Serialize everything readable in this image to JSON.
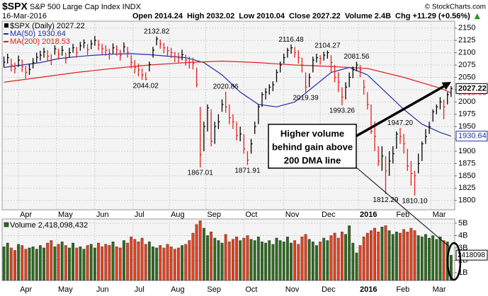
{
  "chart_data": {
    "type": "stock",
    "title": "$SPX",
    "subtitle": "S&P 500 Large Cap Index INDX",
    "credit": "© StockCharts.com",
    "date": "16-Mar-2016",
    "quote": [
      "Open 2014.24",
      "High 2032.02",
      "Low 2010.04",
      "Close 2027.22",
      "Volume 2.4B",
      "Chg +11.29 (+0.56%)"
    ],
    "grid": true,
    "xlim": [
      -1,
      248
    ],
    "xticks": [
      {
        "value": 8,
        "label": "Apr"
      },
      {
        "value": 29,
        "label": "May"
      },
      {
        "value": 50,
        "label": "Jun"
      },
      {
        "value": 71,
        "label": "Jul"
      },
      {
        "value": 91,
        "label": "Aug"
      },
      {
        "value": 111,
        "label": "Sep"
      },
      {
        "value": 132,
        "label": "Oct"
      },
      {
        "value": 154,
        "label": "Nov"
      },
      {
        "value": 174,
        "label": "Dec"
      },
      {
        "value": 195,
        "label": "2016"
      },
      {
        "value": 215,
        "label": "Feb"
      },
      {
        "value": 235,
        "label": "Mar"
      }
    ],
    "ylim": [
      1781,
      2164
    ],
    "yticks": [
      1800,
      1825,
      1850,
      1875,
      1900,
      1925,
      1950,
      1975,
      2000,
      2025,
      2050,
      2075,
      2100,
      2125,
      2150
    ],
    "price": {
      "name": "$SPX (Daily) 2027.22",
      "up_color": "#000000",
      "down_color": "#e8201c",
      "x": [
        0,
        2,
        4,
        6,
        8,
        10,
        12,
        14,
        16,
        18,
        20,
        22,
        24,
        26,
        28,
        30,
        32,
        34,
        36,
        38,
        40,
        42,
        44,
        46,
        48,
        50,
        52,
        54,
        56,
        58,
        60,
        62,
        64,
        66,
        68,
        70,
        72,
        74,
        76,
        78,
        80,
        82,
        84,
        86,
        88,
        90,
        92,
        94,
        96,
        98,
        100,
        102,
        104,
        106,
        108,
        110,
        112,
        114,
        116,
        118,
        120,
        122,
        124,
        126,
        128,
        130,
        132,
        134,
        136,
        138,
        140,
        142,
        144,
        146,
        148,
        150,
        152,
        154,
        156,
        158,
        160,
        162,
        164,
        166,
        168,
        170,
        172,
        174,
        176,
        178,
        180,
        182,
        184,
        186,
        188,
        190,
        192,
        194,
        196,
        198,
        200,
        202,
        204,
        206,
        208,
        210,
        212,
        214,
        216,
        218,
        220,
        222,
        224,
        226,
        228,
        230,
        232,
        234,
        236,
        238,
        240,
        242,
        244,
        246
      ],
      "high": [
        2092,
        2098,
        2088,
        2080,
        2094,
        2086,
        2073,
        2078,
        2089,
        2100,
        2104,
        2110,
        2105,
        2097,
        2115,
        2108,
        2114,
        2100,
        2110,
        2118,
        2112,
        2122,
        2127,
        2117,
        2126,
        2134,
        2126,
        2118,
        2115,
        2108,
        2119,
        2115,
        2106,
        2121,
        2112,
        2095,
        2085,
        2078,
        2068,
        2060,
        2082,
        2112,
        2132.82,
        2127,
        2120,
        2113,
        2110,
        2102,
        2100,
        2106,
        2096,
        2092,
        2090,
        2070,
        1990,
        1960,
        1995,
        1985,
        1960,
        1975,
        2005,
        2020.86,
        1995,
        1975,
        1960,
        1950,
        1935,
        1900,
        1925,
        1960,
        1995,
        2020,
        2028,
        2036,
        2042,
        2066,
        2082,
        2098,
        2110,
        2116.48,
        2112,
        2105,
        2090,
        2060,
        2058,
        2092,
        2098,
        2095,
        2102,
        2104.27,
        2095,
        2075,
        2060,
        2030,
        2040,
        2060,
        2072,
        2081.56,
        2075,
        2045,
        2020,
        1995,
        1960,
        1910,
        1910,
        1890,
        1900,
        1910,
        1940,
        1947.2,
        1935,
        1905,
        1880,
        1860,
        1895,
        1920,
        1945,
        1960,
        1985,
        1995,
        2010,
        2005,
        2020,
        2032.02
      ],
      "low": [
        2070,
        2078,
        2062,
        2058,
        2071,
        2061,
        2048,
        2055,
        2068,
        2080,
        2084,
        2090,
        2082,
        2075,
        2096,
        2086,
        2094,
        2078,
        2090,
        2100,
        2090,
        2104,
        2109,
        2095,
        2107,
        2114,
        2105,
        2097,
        2094,
        2086,
        2098,
        2094,
        2084,
        2100,
        2090,
        2068,
        2058,
        2052,
        2045,
        2044.02,
        2062,
        2090,
        2115,
        2108,
        2099,
        2094,
        2089,
        2081,
        2079,
        2085,
        2074,
        2068,
        2066,
        2030,
        1867.01,
        1900,
        1940,
        1910,
        1915,
        1945,
        1980,
        1978,
        1955,
        1945,
        1922,
        1920,
        1895,
        1871.91,
        1895,
        1935,
        1955,
        1990,
        2005,
        2015,
        2022,
        2040,
        2060,
        2078,
        2090,
        2098,
        2090,
        2078,
        2060,
        2019.39,
        2030,
        2060,
        2080,
        2076,
        2084,
        2088,
        2060,
        2040,
        2020,
        1993.26,
        2005,
        2030,
        2048,
        2062,
        2050,
        2015,
        1985,
        1935,
        1900,
        1870,
        1860,
        1812.29,
        1850,
        1875,
        1905,
        1915,
        1895,
        1860,
        1830,
        1810.1,
        1855,
        1880,
        1915,
        1935,
        1960,
        1975,
        1985,
        1965,
        1995,
        2010.04
      ],
      "close": [
        2081,
        2090,
        2075,
        2068,
        2085,
        2072,
        2060,
        2066,
        2080,
        2091,
        2095,
        2102,
        2093,
        2085,
        2108,
        2097,
        2105,
        2088,
        2100,
        2110,
        2100,
        2114,
        2120,
        2106,
        2118,
        2125,
        2116,
        2108,
        2105,
        2098,
        2110,
        2106,
        2095,
        2112,
        2101,
        2080,
        2070,
        2065,
        2055,
        2046,
        2076,
        2105,
        2128,
        2118,
        2110,
        2104,
        2100,
        2092,
        2090,
        2096,
        2085,
        2080,
        2078,
        2035,
        1893,
        1950,
        1988,
        1920,
        1950,
        1960,
        1995,
        1990,
        1968,
        1960,
        1932,
        1935,
        1905,
        1882,
        1915,
        1950,
        1990,
        2015,
        2020,
        2030,
        2035,
        2060,
        2075,
        2090,
        2105,
        2110,
        2100,
        2090,
        2075,
        2030,
        2050,
        2085,
        2090,
        2088,
        2095,
        2100,
        2080,
        2050,
        2040,
        2010,
        2030,
        2050,
        2065,
        2075,
        2065,
        2030,
        1995,
        1940,
        1930,
        1880,
        1890,
        1860,
        1880,
        1895,
        1935,
        1930,
        1915,
        1870,
        1855,
        1850,
        1875,
        1915,
        1930,
        1950,
        1980,
        1990,
        2000,
        1990,
        2015,
        2027.22
      ],
      "high_labels": [
        null,
        null,
        null,
        null,
        null,
        null,
        null,
        null,
        null,
        null,
        null,
        null,
        null,
        null,
        null,
        null,
        null,
        null,
        null,
        null,
        null,
        null,
        null,
        null,
        null,
        null,
        null,
        null,
        null,
        null,
        null,
        null,
        null,
        null,
        null,
        null,
        null,
        null,
        null,
        null,
        null,
        null,
        "2132.82",
        null,
        null,
        null,
        null,
        null,
        null,
        null,
        null,
        null,
        null,
        null,
        null,
        null,
        null,
        null,
        null,
        null,
        null,
        "2020.86",
        null,
        null,
        null,
        null,
        null,
        null,
        null,
        null,
        null,
        null,
        null,
        null,
        null,
        null,
        null,
        null,
        null,
        "2116.48",
        null,
        null,
        null,
        null,
        null,
        null,
        null,
        null,
        null,
        "2104.27",
        null,
        null,
        null,
        null,
        null,
        null,
        null,
        "2081.56",
        null,
        null,
        null,
        null,
        null,
        null,
        null,
        null,
        null,
        null,
        null,
        "1947.20",
        null,
        null,
        null,
        null,
        null,
        null,
        null,
        null,
        null,
        null,
        null,
        null,
        null,
        null
      ],
      "low_labels": [
        null,
        null,
        null,
        null,
        null,
        null,
        null,
        null,
        null,
        null,
        null,
        null,
        null,
        null,
        null,
        null,
        null,
        null,
        null,
        null,
        null,
        null,
        null,
        null,
        null,
        null,
        null,
        null,
        null,
        null,
        null,
        null,
        null,
        null,
        null,
        null,
        null,
        null,
        null,
        "2044.02",
        null,
        null,
        null,
        null,
        null,
        null,
        null,
        null,
        null,
        null,
        null,
        null,
        null,
        null,
        "1867.01",
        null,
        null,
        null,
        null,
        null,
        null,
        null,
        null,
        null,
        null,
        null,
        null,
        "1871.91",
        null,
        null,
        null,
        null,
        null,
        null,
        null,
        null,
        null,
        null,
        null,
        null,
        null,
        null,
        null,
        "2019.39",
        null,
        null,
        null,
        null,
        null,
        null,
        null,
        null,
        null,
        "1993.26",
        null,
        null,
        null,
        null,
        null,
        null,
        null,
        null,
        null,
        null,
        null,
        "1812.29",
        null,
        null,
        null,
        null,
        null,
        null,
        null,
        "1810.10",
        null,
        null,
        null,
        null,
        null,
        null,
        null,
        null,
        null,
        null
      ]
    },
    "averages": [
      {
        "name": "MA(50) 1930.64",
        "color": "#1f2ea8",
        "x": [
          0,
          10,
          20,
          30,
          40,
          50,
          60,
          70,
          80,
          90,
          100,
          110,
          120,
          130,
          140,
          150,
          160,
          170,
          180,
          190,
          200,
          210,
          220,
          230,
          240,
          246
        ],
        "values": [
          2070,
          2075,
          2080,
          2088,
          2092,
          2095,
          2097,
          2098,
          2096,
          2093,
          2090,
          2080,
          2055,
          2020,
          1995,
          1990,
          2000,
          2030,
          2060,
          2070,
          2055,
          2020,
          1985,
          1955,
          1938,
          1930.64
        ]
      },
      {
        "name": "MA(200) 2018.53",
        "color": "#e02020",
        "x": [
          0,
          20,
          40,
          60,
          80,
          100,
          120,
          140,
          160,
          180,
          200,
          220,
          240,
          246
        ],
        "values": [
          2040,
          2050,
          2060,
          2068,
          2075,
          2080,
          2083,
          2080,
          2075,
          2072,
          2068,
          2050,
          2028,
          2018.53
        ]
      }
    ],
    "volume": {
      "name": "Volume 2,418,098,432",
      "up_color": "#2e6b1f",
      "down_color": "#e8401c",
      "ylim": [
        0.37,
        5.34
      ],
      "yticks": [
        {
          "value": 1,
          "label": "1B"
        },
        {
          "value": 2,
          "label": "2B"
        },
        {
          "value": 3,
          "label": "3B"
        },
        {
          "value": 4,
          "label": "4B"
        },
        {
          "value": 5,
          "label": "5B"
        }
      ],
      "last_label": {
        "value": 2.418098432,
        "label": "2418098"
      },
      "values": [
        3.1,
        3.4,
        3.0,
        2.8,
        3.3,
        3.2,
        2.9,
        3.0,
        3.1,
        2.9,
        3.2,
        3.0,
        3.4,
        3.6,
        3.1,
        3.3,
        3.5,
        3.2,
        3.0,
        3.4,
        3.0,
        3.1,
        2.9,
        3.2,
        3.3,
        3.0,
        3.4,
        3.1,
        3.3,
        3.2,
        3.5,
        3.1,
        3.0,
        3.6,
        3.4,
        3.9,
        3.7,
        3.5,
        3.8,
        3.3,
        3.5,
        3.1,
        3.0,
        3.2,
        3.0,
        3.3,
        3.1,
        2.9,
        3.0,
        3.2,
        3.3,
        3.6,
        4.2,
        4.9,
        5.2,
        4.6,
        4.0,
        4.3,
        3.8,
        3.6,
        3.4,
        4.1,
        3.5,
        3.7,
        3.9,
        3.6,
        3.8,
        4.0,
        3.7,
        3.6,
        3.9,
        3.5,
        3.4,
        3.6,
        3.3,
        3.8,
        3.6,
        3.5,
        3.9,
        3.4,
        3.6,
        3.3,
        3.9,
        4.1,
        3.7,
        3.5,
        3.2,
        3.5,
        3.8,
        3.6,
        4.0,
        4.2,
        3.8,
        4.3,
        4.1,
        4.8,
        3.4,
        2.6,
        3.2,
        3.9,
        4.2,
        4.4,
        4.6,
        4.3,
        4.7,
        4.8,
        4.4,
        4.1,
        4.3,
        4.2,
        4.5,
        4.3,
        4.6,
        4.4,
        4.0,
        3.9,
        4.1,
        3.8,
        4.0,
        3.7,
        3.9,
        3.6,
        3.5,
        2.418098432
      ]
    },
    "annotation": {
      "lines": [
        "Higher volume",
        "behind gain above",
        "200 DMA line"
      ]
    }
  }
}
